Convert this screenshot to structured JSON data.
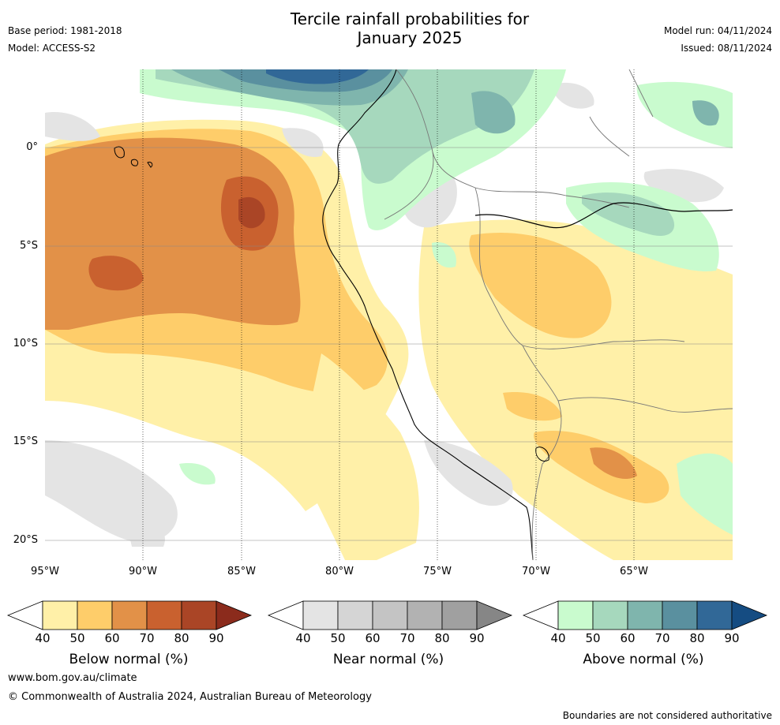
{
  "title": {
    "line1": "Tercile rainfall probabilities for",
    "line2": "January 2025"
  },
  "meta_left": {
    "base_period": "Base period: 1981-2018",
    "model": "Model: ACCESS-S2"
  },
  "meta_right": {
    "model_run": "Model run: 04/11/2024",
    "issued": "Issued: 08/11/2024"
  },
  "map": {
    "lat_ticks": [
      "0°",
      "5°S",
      "10°S",
      "15°S",
      "20°S"
    ],
    "lon_ticks": [
      "95°W",
      "90°W",
      "85°W",
      "80°W",
      "75°W",
      "70°W",
      "65°W"
    ]
  },
  "colorbars": [
    {
      "label": "Below normal (%)",
      "ticks": [
        "40",
        "50",
        "60",
        "70",
        "80",
        "90"
      ],
      "colors": [
        "#fff0a8",
        "#fecd6a",
        "#e29148",
        "#c9612f",
        "#aa4526",
        "#8b2b1c"
      ]
    },
    {
      "label": "Near normal (%)",
      "ticks": [
        "40",
        "50",
        "60",
        "70",
        "80",
        "90"
      ],
      "colors": [
        "#e4e4e4",
        "#d5d5d5",
        "#c4c4c4",
        "#b2b2b2",
        "#a0a0a0",
        "#868686"
      ]
    },
    {
      "label": "Above normal (%)",
      "ticks": [
        "40",
        "50",
        "60",
        "70",
        "80",
        "90"
      ],
      "colors": [
        "#c9fbce",
        "#a6d8bd",
        "#7fb5ad",
        "#5a909f",
        "#316897",
        "#154c82"
      ]
    }
  ],
  "footer": {
    "url": "www.bom.gov.au/climate",
    "copyright": "© Commonwealth of Australia 2024, Australian Bureau of Meteorology",
    "disclaimer": "Boundaries are not considered authoritative"
  }
}
